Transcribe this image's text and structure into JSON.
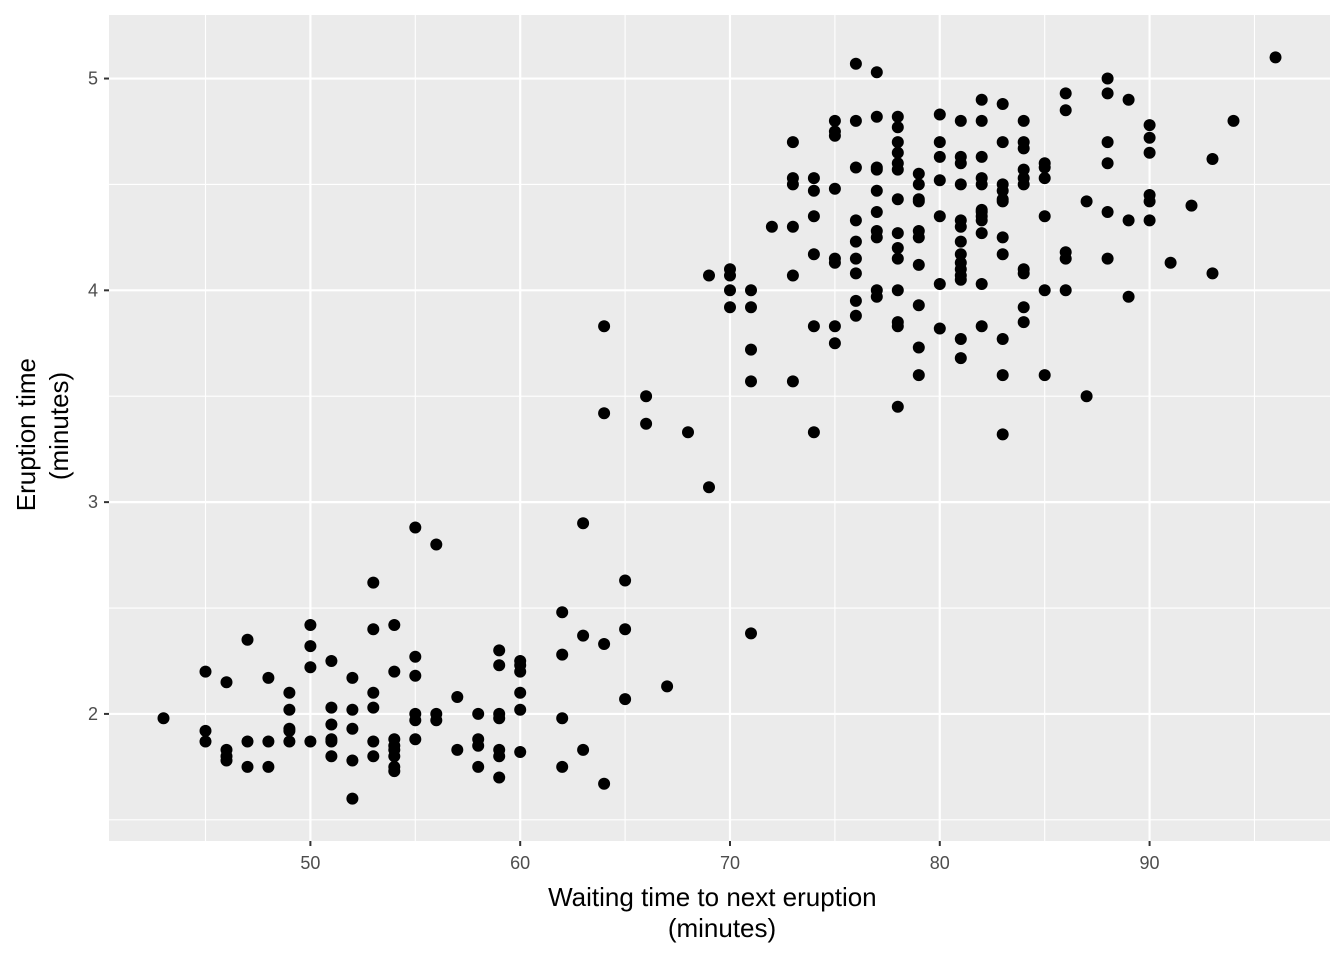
{
  "chart_data": {
    "type": "scatter",
    "title": "",
    "xlabel_lines": [
      "Waiting time to next eruption",
      "(minutes)"
    ],
    "ylabel_lines": [
      "Eruption time",
      "(minutes)"
    ],
    "xlim": [
      40.4,
      98.6
    ],
    "ylim": [
      1.4,
      5.3
    ],
    "x_ticks": [
      50,
      60,
      70,
      80,
      90
    ],
    "y_ticks": [
      2,
      3,
      4,
      5
    ],
    "grid": true,
    "legend": "none",
    "colors": {
      "panel": "#ebebeb",
      "grid_major": "#ffffff",
      "point": "#000000",
      "tick_label": "#4d4d4d",
      "tick_mark": "#333333"
    },
    "points": [
      [
        43,
        1.98
      ],
      [
        45,
        2.2
      ],
      [
        45,
        1.92
      ],
      [
        45,
        1.87
      ],
      [
        46,
        2.15
      ],
      [
        46,
        1.83
      ],
      [
        46,
        1.8
      ],
      [
        46,
        1.78
      ],
      [
        47,
        2.35
      ],
      [
        47,
        1.87
      ],
      [
        47,
        1.75
      ],
      [
        48,
        2.17
      ],
      [
        48,
        1.87
      ],
      [
        48,
        1.75
      ],
      [
        49,
        2.1
      ],
      [
        49,
        2.02
      ],
      [
        49,
        1.93
      ],
      [
        49,
        1.92
      ],
      [
        49,
        1.87
      ],
      [
        50,
        2.42
      ],
      [
        50,
        2.32
      ],
      [
        50,
        2.22
      ],
      [
        50,
        1.87
      ],
      [
        51,
        2.25
      ],
      [
        51,
        2.03
      ],
      [
        51,
        1.95
      ],
      [
        51,
        1.88
      ],
      [
        51,
        1.87
      ],
      [
        51,
        1.8
      ],
      [
        52,
        2.17
      ],
      [
        52,
        2.02
      ],
      [
        52,
        1.93
      ],
      [
        52,
        1.78
      ],
      [
        52,
        1.6
      ],
      [
        53,
        2.62
      ],
      [
        53,
        2.4
      ],
      [
        53,
        2.1
      ],
      [
        53,
        2.03
      ],
      [
        53,
        1.87
      ],
      [
        53,
        1.8
      ],
      [
        54,
        2.42
      ],
      [
        54,
        2.2
      ],
      [
        54,
        1.88
      ],
      [
        54,
        1.85
      ],
      [
        54,
        1.83
      ],
      [
        54,
        1.8
      ],
      [
        54,
        1.75
      ],
      [
        54,
        1.73
      ],
      [
        55,
        2.88
      ],
      [
        55,
        2.27
      ],
      [
        55,
        2.18
      ],
      [
        55,
        2.0
      ],
      [
        55,
        1.97
      ],
      [
        55,
        1.88
      ],
      [
        56,
        2.8
      ],
      [
        56,
        2.0
      ],
      [
        56,
        1.97
      ],
      [
        57,
        2.08
      ],
      [
        57,
        1.83
      ],
      [
        58,
        2.0
      ],
      [
        58,
        1.88
      ],
      [
        58,
        1.85
      ],
      [
        58,
        1.75
      ],
      [
        59,
        2.3
      ],
      [
        59,
        2.23
      ],
      [
        59,
        2.0
      ],
      [
        59,
        1.98
      ],
      [
        59,
        1.83
      ],
      [
        59,
        1.8
      ],
      [
        59,
        1.7
      ],
      [
        60,
        2.25
      ],
      [
        60,
        2.23
      ],
      [
        60,
        2.2
      ],
      [
        60,
        2.1
      ],
      [
        60,
        2.02
      ],
      [
        60,
        1.82
      ],
      [
        62,
        2.48
      ],
      [
        62,
        2.28
      ],
      [
        62,
        1.98
      ],
      [
        62,
        1.75
      ],
      [
        63,
        2.9
      ],
      [
        63,
        2.37
      ],
      [
        63,
        1.83
      ],
      [
        64,
        3.83
      ],
      [
        64,
        3.42
      ],
      [
        64,
        2.33
      ],
      [
        64,
        1.67
      ],
      [
        65,
        2.63
      ],
      [
        65,
        2.4
      ],
      [
        65,
        2.07
      ],
      [
        66,
        3.5
      ],
      [
        66,
        3.37
      ],
      [
        67,
        2.13
      ],
      [
        68,
        3.33
      ],
      [
        69,
        4.07
      ],
      [
        69,
        3.07
      ],
      [
        70,
        4.1
      ],
      [
        70,
        4.07
      ],
      [
        70,
        4.0
      ],
      [
        70,
        3.92
      ],
      [
        71,
        4.0
      ],
      [
        71,
        3.92
      ],
      [
        71,
        3.72
      ],
      [
        71,
        3.57
      ],
      [
        71,
        2.38
      ],
      [
        72,
        4.3
      ],
      [
        73,
        4.7
      ],
      [
        73,
        4.53
      ],
      [
        73,
        4.5
      ],
      [
        73,
        4.3
      ],
      [
        73,
        4.07
      ],
      [
        73,
        3.57
      ],
      [
        74,
        4.53
      ],
      [
        74,
        4.47
      ],
      [
        74,
        4.35
      ],
      [
        74,
        4.17
      ],
      [
        74,
        3.83
      ],
      [
        74,
        3.33
      ],
      [
        75,
        4.8
      ],
      [
        75,
        4.75
      ],
      [
        75,
        4.73
      ],
      [
        75,
        4.48
      ],
      [
        75,
        4.15
      ],
      [
        75,
        4.13
      ],
      [
        75,
        3.83
      ],
      [
        75,
        3.75
      ],
      [
        76,
        5.07
      ],
      [
        76,
        4.8
      ],
      [
        76,
        4.58
      ],
      [
        76,
        4.33
      ],
      [
        76,
        4.23
      ],
      [
        76,
        4.15
      ],
      [
        76,
        4.08
      ],
      [
        76,
        3.95
      ],
      [
        76,
        3.88
      ],
      [
        77,
        5.03
      ],
      [
        77,
        4.82
      ],
      [
        77,
        4.58
      ],
      [
        77,
        4.57
      ],
      [
        77,
        4.47
      ],
      [
        77,
        4.37
      ],
      [
        77,
        4.28
      ],
      [
        77,
        4.25
      ],
      [
        77,
        4.0
      ],
      [
        77,
        3.97
      ],
      [
        78,
        4.82
      ],
      [
        78,
        4.77
      ],
      [
        78,
        4.7
      ],
      [
        78,
        4.65
      ],
      [
        78,
        4.6
      ],
      [
        78,
        4.57
      ],
      [
        78,
        4.43
      ],
      [
        78,
        4.27
      ],
      [
        78,
        4.2
      ],
      [
        78,
        4.15
      ],
      [
        78,
        4.0
      ],
      [
        78,
        3.85
      ],
      [
        78,
        3.83
      ],
      [
        78,
        3.45
      ],
      [
        79,
        4.55
      ],
      [
        79,
        4.5
      ],
      [
        79,
        4.43
      ],
      [
        79,
        4.42
      ],
      [
        79,
        4.28
      ],
      [
        79,
        4.25
      ],
      [
        79,
        4.12
      ],
      [
        79,
        3.93
      ],
      [
        79,
        3.73
      ],
      [
        79,
        3.6
      ],
      [
        80,
        4.83
      ],
      [
        80,
        4.7
      ],
      [
        80,
        4.63
      ],
      [
        80,
        4.52
      ],
      [
        80,
        4.35
      ],
      [
        80,
        4.03
      ],
      [
        80,
        3.82
      ],
      [
        81,
        4.8
      ],
      [
        81,
        4.63
      ],
      [
        81,
        4.6
      ],
      [
        81,
        4.5
      ],
      [
        81,
        4.33
      ],
      [
        81,
        4.3
      ],
      [
        81,
        4.23
      ],
      [
        81,
        4.17
      ],
      [
        81,
        4.13
      ],
      [
        81,
        4.1
      ],
      [
        81,
        4.07
      ],
      [
        81,
        4.05
      ],
      [
        81,
        3.77
      ],
      [
        81,
        3.68
      ],
      [
        82,
        4.9
      ],
      [
        82,
        4.8
      ],
      [
        82,
        4.63
      ],
      [
        82,
        4.53
      ],
      [
        82,
        4.5
      ],
      [
        82,
        4.38
      ],
      [
        82,
        4.37
      ],
      [
        82,
        4.35
      ],
      [
        82,
        4.33
      ],
      [
        82,
        4.27
      ],
      [
        82,
        4.03
      ],
      [
        82,
        3.83
      ],
      [
        83,
        4.88
      ],
      [
        83,
        4.7
      ],
      [
        83,
        4.5
      ],
      [
        83,
        4.47
      ],
      [
        83,
        4.43
      ],
      [
        83,
        4.42
      ],
      [
        83,
        4.25
      ],
      [
        83,
        4.17
      ],
      [
        83,
        3.77
      ],
      [
        83,
        3.6
      ],
      [
        83,
        3.32
      ],
      [
        84,
        4.8
      ],
      [
        84,
        4.7
      ],
      [
        84,
        4.67
      ],
      [
        84,
        4.57
      ],
      [
        84,
        4.53
      ],
      [
        84,
        4.5
      ],
      [
        84,
        4.1
      ],
      [
        84,
        4.08
      ],
      [
        84,
        3.92
      ],
      [
        84,
        3.85
      ],
      [
        85,
        4.6
      ],
      [
        85,
        4.58
      ],
      [
        85,
        4.53
      ],
      [
        85,
        4.35
      ],
      [
        85,
        4.0
      ],
      [
        85,
        3.6
      ],
      [
        86,
        4.93
      ],
      [
        86,
        4.85
      ],
      [
        86,
        4.18
      ],
      [
        86,
        4.15
      ],
      [
        86,
        4.0
      ],
      [
        87,
        4.42
      ],
      [
        87,
        3.5
      ],
      [
        88,
        5.0
      ],
      [
        88,
        4.93
      ],
      [
        88,
        4.7
      ],
      [
        88,
        4.6
      ],
      [
        88,
        4.37
      ],
      [
        88,
        4.15
      ],
      [
        89,
        4.9
      ],
      [
        89,
        4.33
      ],
      [
        89,
        3.97
      ],
      [
        90,
        4.78
      ],
      [
        90,
        4.72
      ],
      [
        90,
        4.65
      ],
      [
        90,
        4.45
      ],
      [
        90,
        4.42
      ],
      [
        90,
        4.33
      ],
      [
        91,
        4.13
      ],
      [
        92,
        4.4
      ],
      [
        93,
        4.62
      ],
      [
        93,
        4.08
      ],
      [
        94,
        4.8
      ],
      [
        96,
        5.1
      ]
    ]
  }
}
